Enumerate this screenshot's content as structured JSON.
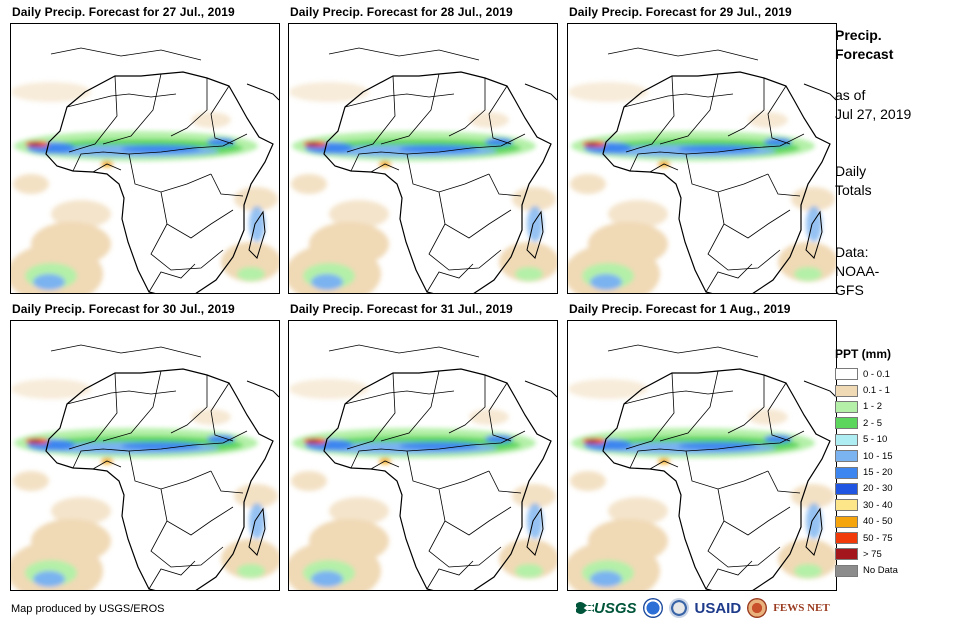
{
  "panels": [
    {
      "title": "Daily Precip. Forecast for 27 Jul., 2019"
    },
    {
      "title": "Daily Precip. Forecast for 28 Jul., 2019"
    },
    {
      "title": "Daily Precip. Forecast for 29 Jul., 2019"
    },
    {
      "title": "Daily Precip. Forecast for 30 Jul., 2019"
    },
    {
      "title": "Daily Precip. Forecast for 31 Jul., 2019"
    },
    {
      "title": "Daily Precip. Forecast for 1 Aug., 2019"
    }
  ],
  "side": {
    "title_line1": "Precip.",
    "title_line2": "Forecast",
    "asof_line1": "as of",
    "asof_line2": "Jul 27, 2019",
    "totals_line1": "Daily",
    "totals_line2": "Totals",
    "data_line1": "Data:",
    "data_line2": "NOAA-",
    "data_line3": "GFS"
  },
  "legend": {
    "title": "PPT (mm)",
    "items": [
      {
        "label": "0 - 0.1",
        "color": "#ffffff"
      },
      {
        "label": "0.1 - 1",
        "color": "#f0d9b5"
      },
      {
        "label": "1 - 2",
        "color": "#b4f0a8"
      },
      {
        "label": "2 - 5",
        "color": "#5cd65c"
      },
      {
        "label": "5 - 10",
        "color": "#aeeef2"
      },
      {
        "label": "10 - 15",
        "color": "#7ab3f0"
      },
      {
        "label": "15 - 20",
        "color": "#3d86f0"
      },
      {
        "label": "20 - 30",
        "color": "#1f55e0"
      },
      {
        "label": "30 - 40",
        "color": "#fde68a"
      },
      {
        "label": "40 - 50",
        "color": "#f5a50b"
      },
      {
        "label": "50 - 75",
        "color": "#f03a0a"
      },
      {
        "label": "> 75",
        "color": "#a3161c"
      },
      {
        "label": "No Data",
        "color": "#8c8c8c"
      }
    ]
  },
  "footer": {
    "credit": "Map produced by USGS/EROS",
    "logo_usgs": "USGS",
    "logo_usaid": "USAID",
    "logo_fews": "FEWS NET"
  }
}
